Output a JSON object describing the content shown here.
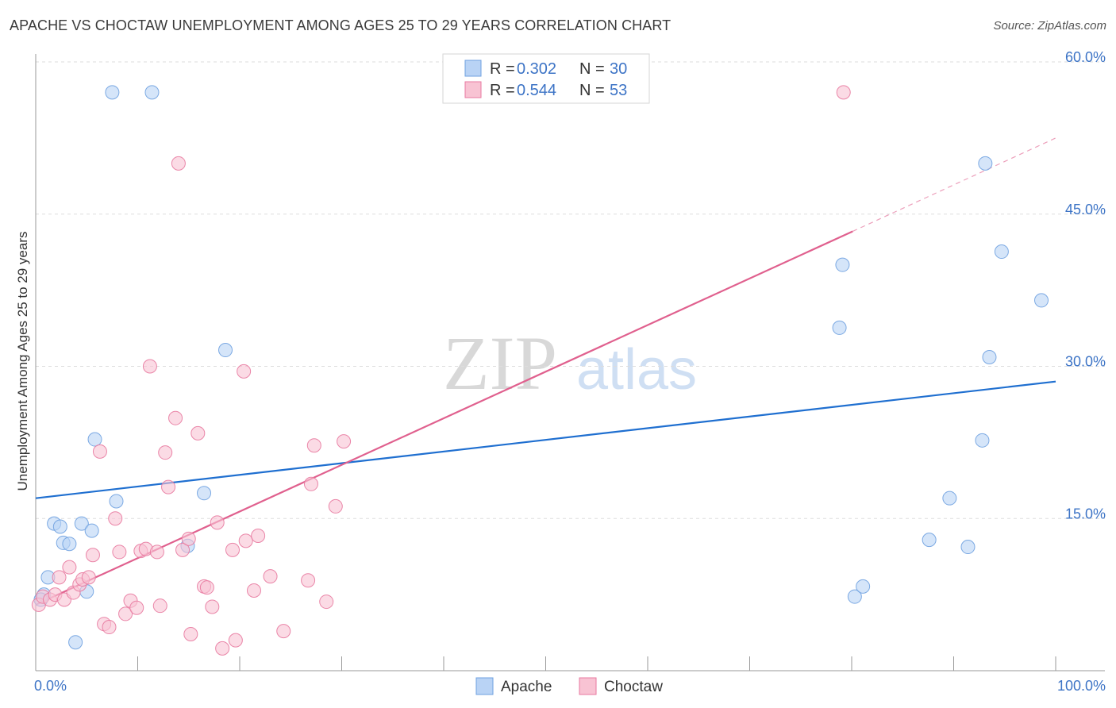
{
  "chart_data": {
    "type": "scatter",
    "title": "APACHE VS CHOCTAW UNEMPLOYMENT AMONG AGES 25 TO 29 YEARS CORRELATION CHART",
    "source": "Source: ZipAtlas.com",
    "ylabel": "Unemployment Among Ages 25 to 29 years",
    "xlabel": "",
    "xlim": [
      0,
      100
    ],
    "ylim": [
      0,
      60
    ],
    "x_tick_labels": [
      "0.0%",
      "100.0%"
    ],
    "y_ticks": [
      15,
      30,
      45,
      60
    ],
    "y_tick_labels": [
      "15.0%",
      "30.0%",
      "45.0%",
      "60.0%"
    ],
    "watermark": [
      "ZIP",
      "atlas"
    ],
    "legend": {
      "r_label": "R =",
      "n_label": "N =",
      "entries": [
        {
          "name": "Apache",
          "r": "0.302",
          "n": "30",
          "color": "#6fa1e0",
          "fill": "#b9d3f5"
        },
        {
          "name": "Choctaw",
          "r": "0.544",
          "n": "53",
          "color": "#e87aa0",
          "fill": "#f8c3d3"
        }
      ]
    },
    "series": [
      {
        "name": "Apache",
        "color": "#1f6fd0",
        "trend": {
          "x0": 0,
          "y0": 17.0,
          "x1": 100,
          "y1": 28.5
        },
        "points": [
          [
            0.8,
            7.5
          ],
          [
            1.2,
            9.2
          ],
          [
            1.8,
            14.5
          ],
          [
            2.4,
            14.2
          ],
          [
            2.7,
            12.6
          ],
          [
            3.3,
            12.5
          ],
          [
            4.5,
            14.5
          ],
          [
            5.5,
            13.8
          ],
          [
            5.0,
            7.8
          ],
          [
            3.9,
            2.8
          ],
          [
            5.8,
            22.8
          ],
          [
            7.9,
            16.7
          ],
          [
            7.5,
            57.0
          ],
          [
            11.4,
            57.0
          ],
          [
            14.9,
            12.3
          ],
          [
            16.5,
            17.5
          ],
          [
            18.6,
            31.6
          ],
          [
            78.8,
            33.8
          ],
          [
            79.1,
            40.0
          ],
          [
            80.3,
            7.3
          ],
          [
            81.1,
            8.3
          ],
          [
            87.6,
            12.9
          ],
          [
            89.6,
            17.0
          ],
          [
            91.4,
            12.2
          ],
          [
            92.8,
            22.7
          ],
          [
            93.1,
            50.0
          ],
          [
            93.5,
            30.9
          ],
          [
            94.7,
            41.3
          ],
          [
            98.6,
            36.5
          ],
          [
            0.5,
            7.0
          ]
        ]
      },
      {
        "name": "Choctaw",
        "color": "#e0608e",
        "trend": {
          "x0": 0,
          "y0": 6.5,
          "x1": 80.1,
          "y1": 43.3
        },
        "trend_dashed_to": {
          "x": 100,
          "y": 52.5
        },
        "points": [
          [
            0.3,
            6.5
          ],
          [
            0.7,
            7.3
          ],
          [
            1.4,
            7.0
          ],
          [
            1.9,
            7.5
          ],
          [
            2.3,
            9.2
          ],
          [
            2.8,
            7.0
          ],
          [
            3.3,
            10.2
          ],
          [
            3.7,
            7.7
          ],
          [
            4.3,
            8.5
          ],
          [
            4.6,
            9.0
          ],
          [
            5.2,
            9.2
          ],
          [
            5.6,
            11.4
          ],
          [
            6.3,
            21.6
          ],
          [
            6.7,
            4.6
          ],
          [
            7.2,
            4.3
          ],
          [
            7.8,
            15.0
          ],
          [
            8.2,
            11.7
          ],
          [
            8.8,
            5.6
          ],
          [
            9.3,
            6.9
          ],
          [
            9.9,
            6.2
          ],
          [
            10.3,
            11.8
          ],
          [
            10.8,
            12.0
          ],
          [
            11.2,
            30.0
          ],
          [
            11.9,
            11.7
          ],
          [
            12.2,
            6.4
          ],
          [
            12.7,
            21.5
          ],
          [
            13.0,
            18.1
          ],
          [
            13.7,
            24.9
          ],
          [
            14.0,
            50.0
          ],
          [
            14.4,
            11.9
          ],
          [
            15.0,
            13.0
          ],
          [
            15.2,
            3.6
          ],
          [
            15.9,
            23.4
          ],
          [
            16.5,
            8.3
          ],
          [
            16.8,
            8.2
          ],
          [
            17.3,
            6.3
          ],
          [
            17.8,
            14.6
          ],
          [
            18.3,
            2.2
          ],
          [
            19.3,
            11.9
          ],
          [
            19.6,
            3.0
          ],
          [
            20.4,
            29.5
          ],
          [
            20.6,
            12.8
          ],
          [
            21.4,
            7.9
          ],
          [
            21.8,
            13.3
          ],
          [
            23.0,
            9.3
          ],
          [
            24.3,
            3.9
          ],
          [
            26.7,
            8.9
          ],
          [
            27.3,
            22.2
          ],
          [
            27.0,
            18.4
          ],
          [
            28.5,
            6.8
          ],
          [
            29.4,
            16.2
          ],
          [
            30.2,
            22.6
          ],
          [
            79.2,
            57.0
          ]
        ]
      }
    ]
  }
}
